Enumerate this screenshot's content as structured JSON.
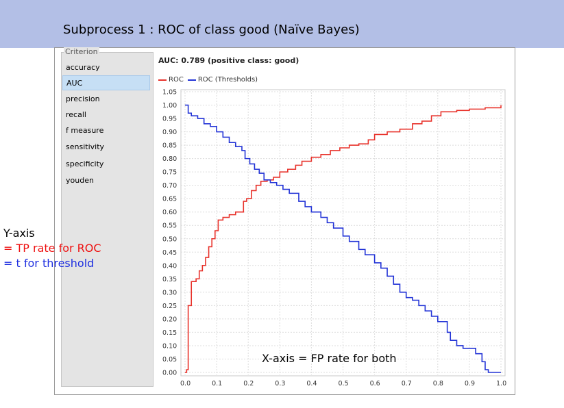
{
  "slide": {
    "title": "Subprocess 1 : ROC of class good (Naïve Bayes)"
  },
  "criterion": {
    "legend": "Criterion",
    "items": [
      "accuracy",
      "AUC",
      "precision",
      "recall",
      "f measure",
      "sensitivity",
      "specificity",
      "youden"
    ],
    "selected": "AUC"
  },
  "annotations": {
    "y_axis_1": "Y-axis",
    "y_axis_2": "= TP rate for ROC",
    "y_axis_3": "= t for threshold",
    "x_axis": "X-axis = FP rate for both"
  },
  "colors": {
    "roc": "#e8322b",
    "thresholds": "#2233d6",
    "y_axis_2": "#ee1111",
    "y_axis_3": "#1e2fe0"
  },
  "chart_data": {
    "type": "line",
    "title": "AUC: 0.789 (positive class: good)",
    "xlim": [
      0.0,
      1.0
    ],
    "ylim": [
      0.0,
      1.05
    ],
    "x_ticks": [
      "0.0",
      "0.1",
      "0.2",
      "0.3",
      "0.4",
      "0.5",
      "0.6",
      "0.7",
      "0.8",
      "0.9",
      "1.0"
    ],
    "y_ticks": [
      "0.00",
      "0.05",
      "0.10",
      "0.15",
      "0.20",
      "0.25",
      "0.30",
      "0.35",
      "0.40",
      "0.45",
      "0.50",
      "0.55",
      "0.60",
      "0.65",
      "0.70",
      "0.75",
      "0.80",
      "0.85",
      "0.90",
      "0.95",
      "1.00",
      "1.05"
    ],
    "grid": true,
    "legend_position": "top-left",
    "series": [
      {
        "name": "ROC",
        "color": "#e8322b",
        "points": [
          [
            0,
            0
          ],
          [
            0.005,
            0.01
          ],
          [
            0.01,
            0.25
          ],
          [
            0.02,
            0.34
          ],
          [
            0.035,
            0.35
          ],
          [
            0.045,
            0.38
          ],
          [
            0.055,
            0.4
          ],
          [
            0.065,
            0.43
          ],
          [
            0.075,
            0.47
          ],
          [
            0.085,
            0.5
          ],
          [
            0.095,
            0.53
          ],
          [
            0.105,
            0.57
          ],
          [
            0.12,
            0.58
          ],
          [
            0.14,
            0.59
          ],
          [
            0.16,
            0.6
          ],
          [
            0.175,
            0.6
          ],
          [
            0.185,
            0.64
          ],
          [
            0.195,
            0.65
          ],
          [
            0.21,
            0.68
          ],
          [
            0.225,
            0.7
          ],
          [
            0.24,
            0.715
          ],
          [
            0.26,
            0.72
          ],
          [
            0.28,
            0.73
          ],
          [
            0.3,
            0.75
          ],
          [
            0.325,
            0.76
          ],
          [
            0.35,
            0.775
          ],
          [
            0.37,
            0.79
          ],
          [
            0.4,
            0.805
          ],
          [
            0.43,
            0.815
          ],
          [
            0.46,
            0.83
          ],
          [
            0.49,
            0.84
          ],
          [
            0.52,
            0.85
          ],
          [
            0.55,
            0.855
          ],
          [
            0.58,
            0.87
          ],
          [
            0.6,
            0.89
          ],
          [
            0.64,
            0.9
          ],
          [
            0.68,
            0.91
          ],
          [
            0.72,
            0.93
          ],
          [
            0.75,
            0.94
          ],
          [
            0.78,
            0.96
          ],
          [
            0.81,
            0.975
          ],
          [
            0.86,
            0.98
          ],
          [
            0.9,
            0.985
          ],
          [
            0.95,
            0.99
          ],
          [
            1.0,
            1.0
          ]
        ]
      },
      {
        "name": "ROC (Thresholds)",
        "color": "#2233d6",
        "points": [
          [
            0,
            1.0
          ],
          [
            0.01,
            0.97
          ],
          [
            0.02,
            0.96
          ],
          [
            0.04,
            0.95
          ],
          [
            0.06,
            0.93
          ],
          [
            0.08,
            0.92
          ],
          [
            0.1,
            0.9
          ],
          [
            0.12,
            0.88
          ],
          [
            0.14,
            0.86
          ],
          [
            0.16,
            0.845
          ],
          [
            0.18,
            0.83
          ],
          [
            0.19,
            0.8
          ],
          [
            0.205,
            0.78
          ],
          [
            0.22,
            0.76
          ],
          [
            0.235,
            0.745
          ],
          [
            0.25,
            0.72
          ],
          [
            0.27,
            0.71
          ],
          [
            0.29,
            0.7
          ],
          [
            0.31,
            0.685
          ],
          [
            0.33,
            0.67
          ],
          [
            0.36,
            0.64
          ],
          [
            0.38,
            0.62
          ],
          [
            0.4,
            0.6
          ],
          [
            0.43,
            0.58
          ],
          [
            0.45,
            0.56
          ],
          [
            0.47,
            0.54
          ],
          [
            0.5,
            0.51
          ],
          [
            0.52,
            0.49
          ],
          [
            0.55,
            0.46
          ],
          [
            0.57,
            0.44
          ],
          [
            0.6,
            0.41
          ],
          [
            0.62,
            0.39
          ],
          [
            0.64,
            0.36
          ],
          [
            0.66,
            0.33
          ],
          [
            0.68,
            0.3
          ],
          [
            0.7,
            0.28
          ],
          [
            0.72,
            0.27
          ],
          [
            0.74,
            0.25
          ],
          [
            0.76,
            0.23
          ],
          [
            0.78,
            0.21
          ],
          [
            0.8,
            0.19
          ],
          [
            0.83,
            0.15
          ],
          [
            0.84,
            0.12
          ],
          [
            0.86,
            0.1
          ],
          [
            0.88,
            0.09
          ],
          [
            0.92,
            0.07
          ],
          [
            0.94,
            0.04
          ],
          [
            0.95,
            0.01
          ],
          [
            0.96,
            0.0
          ],
          [
            1.0,
            0.0
          ]
        ]
      }
    ]
  }
}
